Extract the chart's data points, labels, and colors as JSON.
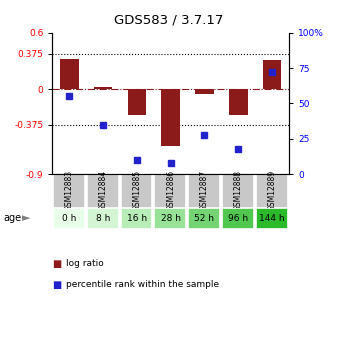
{
  "title": "GDS583 / 3.7.17",
  "samples": [
    "GSM12883",
    "GSM12884",
    "GSM12885",
    "GSM12886",
    "GSM12887",
    "GSM12888",
    "GSM12889"
  ],
  "ages": [
    "0 h",
    "8 h",
    "16 h",
    "28 h",
    "52 h",
    "96 h",
    "144 h"
  ],
  "log_ratios": [
    0.32,
    0.02,
    -0.27,
    -0.6,
    -0.05,
    -0.27,
    0.31
  ],
  "percentile_ranks": [
    55,
    35,
    10,
    8,
    28,
    18,
    72
  ],
  "bar_color": "#8b1a1a",
  "dot_color": "#2222cc",
  "ylim_left": [
    -0.9,
    0.6
  ],
  "ylim_right": [
    0,
    100
  ],
  "yticks_left": [
    -0.9,
    -0.375,
    0,
    0.375,
    0.6
  ],
  "ytick_labels_left": [
    "-0.9",
    "-0.375",
    "0",
    "0.375",
    "0.6"
  ],
  "yticks_right": [
    0,
    25,
    50,
    75,
    100
  ],
  "ytick_labels_right": [
    "0",
    "25",
    "50",
    "75",
    "100%"
  ],
  "hlines": [
    0.375,
    -0.375
  ],
  "bar_width": 0.55,
  "legend_log_ratio": "log ratio",
  "legend_percentile": "percentile rank within the sample",
  "gsm_bg": "#c8c8c8",
  "age_bg_colors": [
    "#e8ffe8",
    "#d4f5d4",
    "#b8edb8",
    "#98e298",
    "#74d474",
    "#50c850",
    "#2aba2a"
  ]
}
